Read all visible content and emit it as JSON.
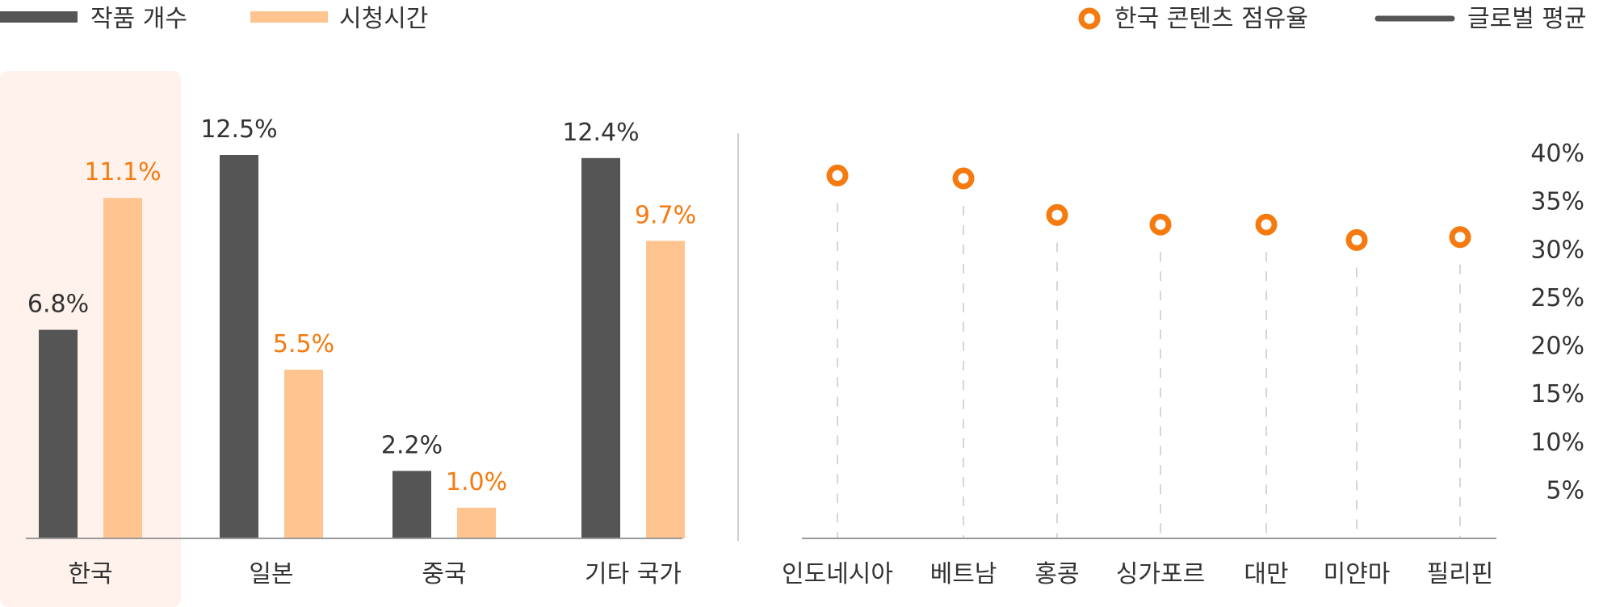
{
  "legend_left": [
    {
      "label": "작품 개수",
      "color": "#555555"
    },
    {
      "label": "시청시간",
      "color": "#FFC48F"
    }
  ],
  "legend_right": [
    {
      "label": "한국 콘텐츠 점유율",
      "color": "#F57A0F"
    },
    {
      "label": "글로벌 평균",
      "color": "#555555"
    }
  ],
  "chart_data": [
    {
      "type": "bar",
      "categories": [
        "한국",
        "일본",
        "중국",
        "기타 국가"
      ],
      "highlighted_category": "한국",
      "series": [
        {
          "name": "작품 개수",
          "values": [
            6.8,
            12.5,
            2.2,
            12.4
          ],
          "labels": [
            "6.8%",
            "12.5%",
            "2.2%",
            "12.4%"
          ],
          "color": "#555555",
          "label_color": "#333333"
        },
        {
          "name": "시청시간",
          "values": [
            11.1,
            5.5,
            1.0,
            9.7
          ],
          "labels": [
            "11.1%",
            "5.5%",
            "1.0%",
            "9.7%"
          ],
          "color": "#FFC48F",
          "label_color": "#F57A0F"
        }
      ],
      "ylim": [
        0,
        13.5
      ]
    },
    {
      "type": "scatter",
      "categories": [
        "인도네시아",
        "베트남",
        "홍콩",
        "싱가포르",
        "대만",
        "미얀마",
        "필리핀"
      ],
      "series": [
        {
          "name": "한국 콘텐츠 점유율",
          "values": [
            37.7,
            37.4,
            33.6,
            32.6,
            32.6,
            31.0,
            31.3
          ],
          "color": "#F57A0F"
        }
      ],
      "y_ticks": [
        "40%",
        "35%",
        "30%",
        "25%",
        "20%",
        "15%",
        "10%",
        "5%"
      ],
      "y_tick_values": [
        40,
        35,
        30,
        25,
        20,
        15,
        10,
        5
      ],
      "ylim": [
        0,
        40
      ],
      "y_axis_position": "right",
      "drop_lines": "dashed"
    }
  ]
}
